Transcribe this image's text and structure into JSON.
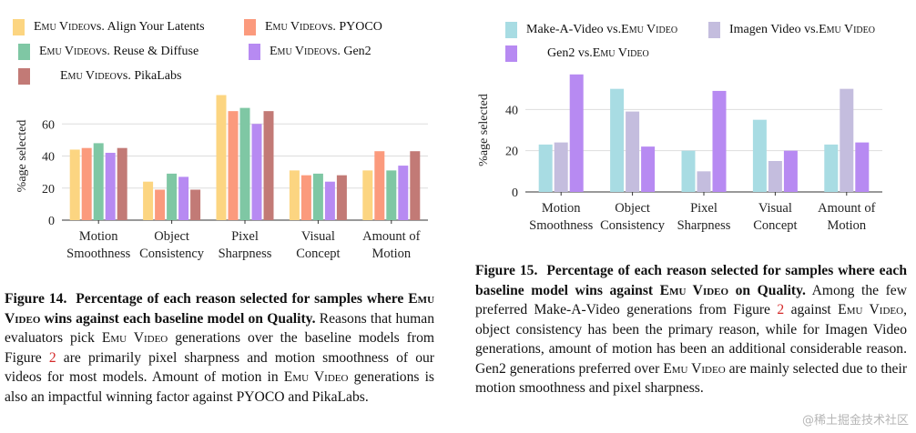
{
  "chart_data": [
    {
      "type": "bar",
      "ylabel": "%age selected",
      "ylim": [
        0,
        80
      ],
      "yticks": [
        0,
        20,
        40,
        60
      ],
      "grid": true,
      "categories": [
        [
          "Motion",
          "Smoothness"
        ],
        [
          "Object",
          "Consistency"
        ],
        [
          "Pixel",
          "Sharpness"
        ],
        [
          "Visual",
          "Concept"
        ],
        [
          "Amount of",
          "Motion"
        ]
      ],
      "series": [
        {
          "name": "Emu Video vs. Align Your Latents",
          "color": "#fcd581",
          "values": [
            44,
            24,
            78,
            31,
            31
          ]
        },
        {
          "name": "Emu Video vs. PYOCO",
          "color": "#fb9a7d",
          "values": [
            45,
            19,
            68,
            28,
            43
          ]
        },
        {
          "name": "Emu Video vs. Reuse & Diffuse",
          "color": "#7fc7a4",
          "values": [
            48,
            29,
            70,
            29,
            31
          ]
        },
        {
          "name": "Emu Video vs. Gen2",
          "color": "#b78af2",
          "values": [
            42,
            27,
            60,
            24,
            34
          ]
        },
        {
          "name": "Emu Video vs. PikaLabs",
          "color": "#c27a76",
          "values": [
            45,
            19,
            68,
            28,
            43
          ]
        }
      ]
    },
    {
      "type": "bar",
      "ylabel": "%age selected",
      "ylim": [
        0,
        60
      ],
      "yticks": [
        0,
        20,
        40
      ],
      "grid": true,
      "categories": [
        [
          "Motion",
          "Smoothness"
        ],
        [
          "Object",
          "Consistency"
        ],
        [
          "Pixel",
          "Sharpness"
        ],
        [
          "Visual",
          "Concept"
        ],
        [
          "Amount of",
          "Motion"
        ]
      ],
      "series": [
        {
          "name": "Make-A-Video vs. Emu Video",
          "color": "#a8dce3",
          "values": [
            23,
            50,
            20,
            35,
            23
          ]
        },
        {
          "name": "Imagen Video vs. Emu Video",
          "color": "#c4bdde",
          "values": [
            24,
            39,
            10,
            15,
            50
          ]
        },
        {
          "name": "Gen2 vs. Emu Video",
          "color": "#b78af2",
          "values": [
            57,
            22,
            49,
            20,
            24
          ]
        }
      ]
    }
  ],
  "legend1": [
    {
      "pre": "Emu Video",
      "post": " vs. Align Your Latents"
    },
    {
      "pre": "Emu Video",
      "post": " vs. PYOCO"
    },
    {
      "pre": "Emu Video",
      "post": " vs. Reuse & Diffuse"
    },
    {
      "pre": "Emu Video",
      "post": " vs. Gen2"
    },
    {
      "pre": "Emu Video",
      "post": " vs. PikaLabs"
    }
  ],
  "legend2": [
    {
      "pre": "Make-A-Video vs. ",
      "post": "Emu Video"
    },
    {
      "pre": "Imagen Video vs. ",
      "post": "Emu Video"
    },
    {
      "pre": "Gen2 vs. ",
      "post": "Emu Video"
    }
  ],
  "caption14": {
    "label": "Figure 14.",
    "bold1": "Percentage of each reason selected for samples where ",
    "bold_sc": "Emu Video",
    "bold2": " wins against each baseline model on Quality.",
    "t1": " Reasons that human evaluators pick ",
    "t_sc1": "Emu Video",
    "t2": " generations over the baseline models from Figure ",
    "ref": "2",
    "t3": " are primarily pixel sharpness and motion smoothness of our videos for most models. Amount of motion in ",
    "t_sc2": "Emu Video",
    "t4": " generations is also an impactful winning factor against PYOCO and PikaLabs."
  },
  "caption15": {
    "label": "Figure 15.",
    "bold1": "Percentage of each reason selected for samples where each baseline model wins against ",
    "bold_sc": "Emu Video",
    "bold2": " on Quality.",
    "t1": " Among the few preferred Make-A-Video generations from Figure ",
    "ref": "2",
    "t2": " against ",
    "t_sc1": "Emu Video",
    "t3": ", object consistency has been the primary reason, while for Imagen Video generations, amount of motion has been an additional considerable reason. Gen2 generations preferred over ",
    "t_sc2": "Emu Video",
    "t4": " are mainly selected due to their motion smoothness and pixel sharpness."
  },
  "watermark": "@稀土掘金技术社区"
}
